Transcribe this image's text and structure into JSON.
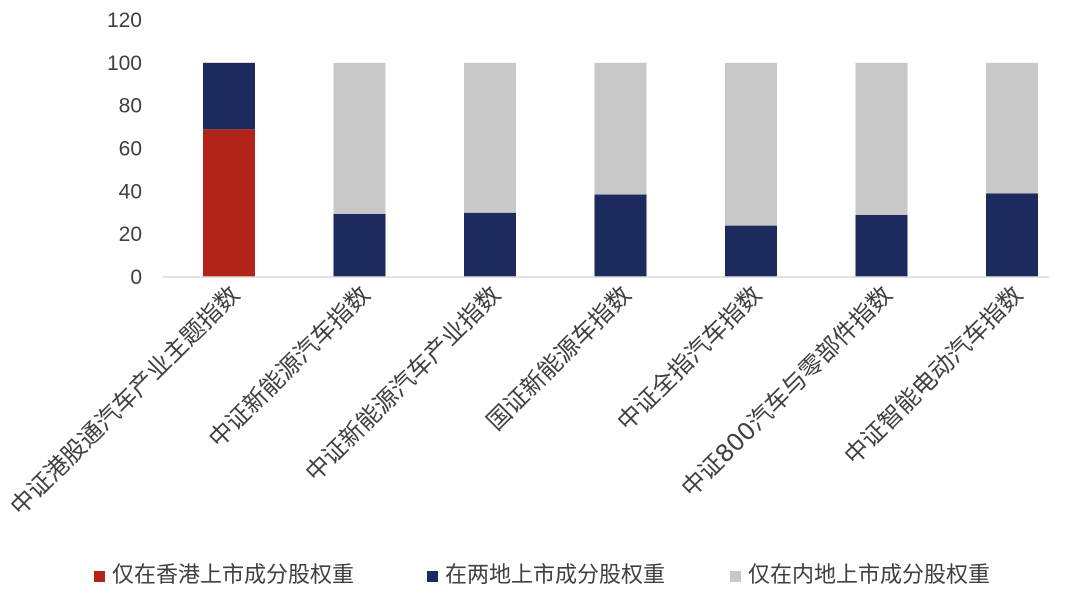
{
  "chart_data": {
    "type": "bar",
    "stacked": true,
    "categories": [
      "中证港股通汽车产业主题指数",
      "中证新能源汽车指数",
      "中证新能源汽车产业指数",
      "国证新能源车指数",
      "中证全指汽车指数",
      "中证800汽车与零部件指数",
      "中证智能电动汽车指数"
    ],
    "series": [
      {
        "name": "仅在香港上市成分股权重",
        "color": "#b22419",
        "values": [
          69,
          0,
          0,
          0,
          0,
          0,
          0
        ]
      },
      {
        "name": "在两地上市成分股权重",
        "color": "#1c2a5e",
        "values": [
          31,
          29.5,
          30,
          38.5,
          24,
          29,
          39
        ]
      },
      {
        "name": "仅在内地上市成分股权重",
        "color": "#c8c8c8",
        "values": [
          0,
          70.5,
          70,
          61.5,
          76,
          71,
          61
        ]
      }
    ],
    "ylim": [
      0,
      120
    ],
    "yticks": [
      "0",
      "20",
      "40",
      "60",
      "80",
      "100",
      "120"
    ],
    "grid": false,
    "legend_position": "bottom",
    "title": "",
    "xlabel": "",
    "ylabel": ""
  }
}
